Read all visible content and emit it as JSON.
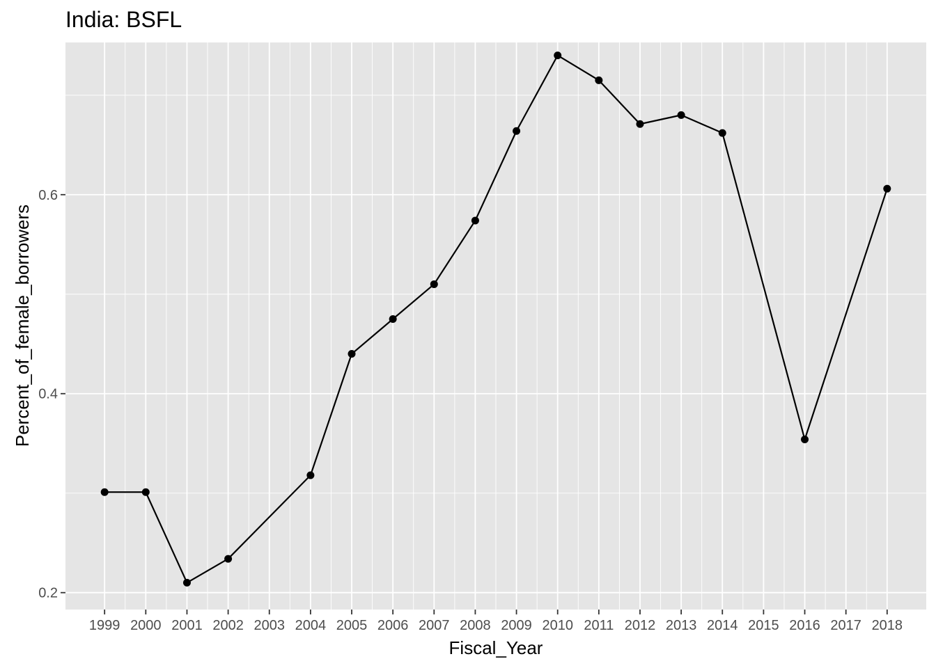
{
  "chart_data": {
    "type": "line",
    "title": "India:  BSFL",
    "xlabel": "Fiscal_Year",
    "ylabel": "Percent_of_female_borrowers",
    "x_ticks": [
      "1999",
      "2000",
      "2001",
      "2002",
      "2003",
      "2004",
      "2005",
      "2006",
      "2007",
      "2008",
      "2009",
      "2010",
      "2011",
      "2012",
      "2013",
      "2014",
      "2015",
      "2016",
      "2017",
      "2018"
    ],
    "y_ticks": [
      "0.2",
      "0.4",
      "0.6"
    ],
    "ylim": [
      0.183,
      0.753
    ],
    "xlim": [
      1998.05,
      2018.95
    ],
    "grid": true,
    "points": [
      {
        "x": 1999,
        "y": 0.301
      },
      {
        "x": 2000,
        "y": 0.301
      },
      {
        "x": 2001,
        "y": 0.21
      },
      {
        "x": 2002,
        "y": 0.234
      },
      {
        "x": 2004,
        "y": 0.318
      },
      {
        "x": 2005,
        "y": 0.44
      },
      {
        "x": 2006,
        "y": 0.475
      },
      {
        "x": 2007,
        "y": 0.51
      },
      {
        "x": 2008,
        "y": 0.574
      },
      {
        "x": 2009,
        "y": 0.664
      },
      {
        "x": 2010,
        "y": 0.74
      },
      {
        "x": 2011,
        "y": 0.715
      },
      {
        "x": 2012,
        "y": 0.671
      },
      {
        "x": 2013,
        "y": 0.68
      },
      {
        "x": 2014,
        "y": 0.662
      },
      {
        "x": 2016,
        "y": 0.354
      },
      {
        "x": 2018,
        "y": 0.606
      }
    ],
    "colors": {
      "panel": "#e5e5e5",
      "grid_major": "#ffffff",
      "line": "#000000",
      "point": "#000000",
      "tick": "#333333",
      "tick_label": "#4d4d4d"
    }
  }
}
